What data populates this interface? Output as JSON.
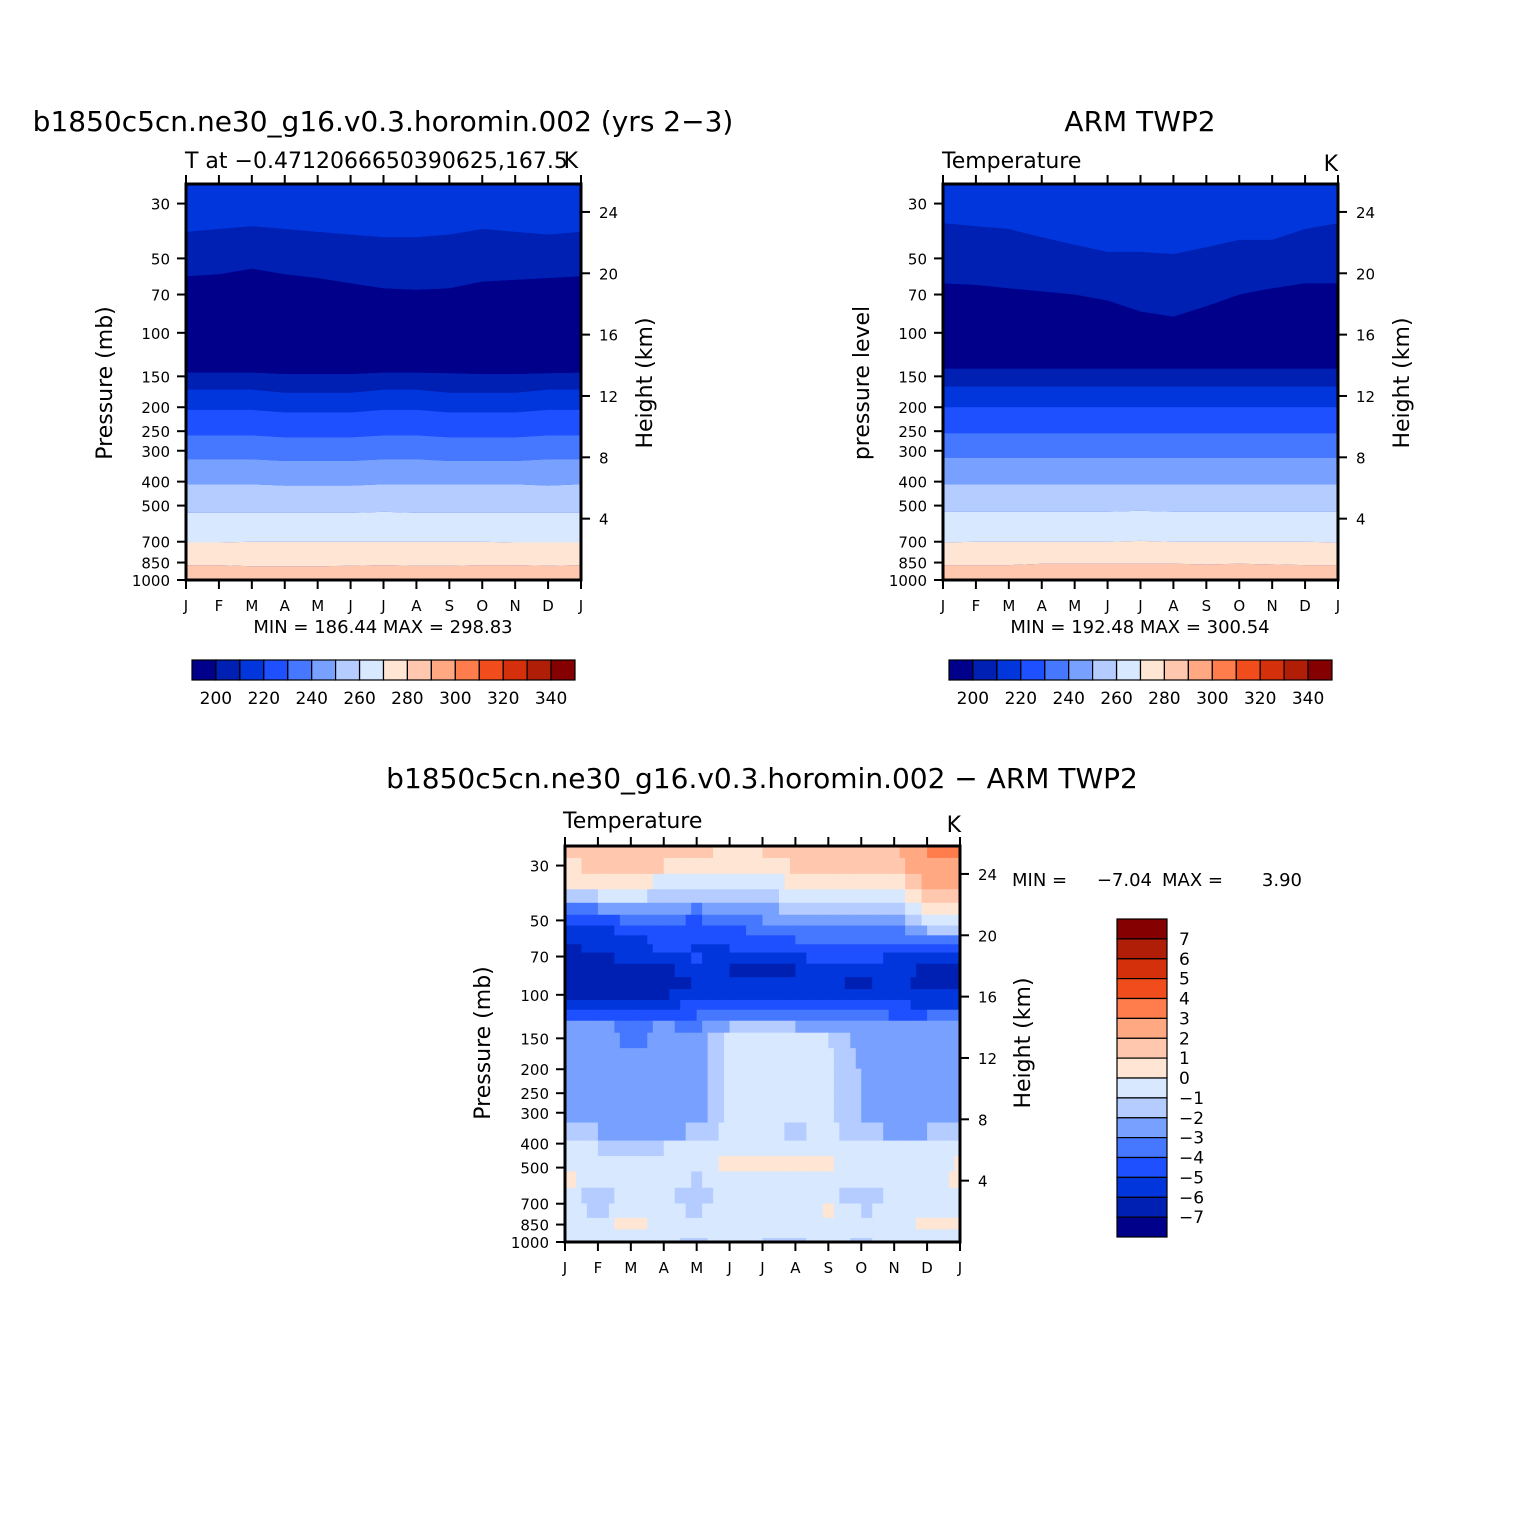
{
  "palette": {
    "abs": [
      "#00008b",
      "#0020b3",
      "#0036dc",
      "#1e50ff",
      "#4678ff",
      "#78a0ff",
      "#b4ccff",
      "#d7e8ff",
      "#ffe6d4",
      "#ffc8ae",
      "#ffa882",
      "#ff7c4c",
      "#f04c1c",
      "#d4300c",
      "#b01e08",
      "#850000"
    ],
    "diff": [
      "#00008b",
      "#0020b3",
      "#0036dc",
      "#1e50ff",
      "#4678ff",
      "#78a0ff",
      "#b4ccff",
      "#d7e8ff",
      "#ffe6d4",
      "#ffc8ae",
      "#ffa882",
      "#ff7c4c",
      "#f04c1c",
      "#d4300c",
      "#b01e08",
      "#850000"
    ]
  },
  "panels": {
    "model": {
      "title": "b1850c5cn.ne30_g16.v0.3.horomin.002 (yrs 2−3)",
      "subtitle_left": "T at −0.4712066650390625,167.5",
      "subtitle_right": "K",
      "ylabel_left": "Pressure (mb)",
      "ylabel_right": "Height (km)",
      "minmax": "MIN = 186.44 MAX = 298.83",
      "colorbar_labels": [
        "200",
        "220",
        "240",
        "260",
        "280",
        "300",
        "320",
        "340"
      ]
    },
    "obs": {
      "title": "ARM TWP2",
      "subtitle_left": "Temperature",
      "subtitle_right": "K",
      "ylabel_left": "pressure level",
      "ylabel_right": "Height (km)",
      "minmax": "MIN = 192.48 MAX = 300.54",
      "colorbar_labels": [
        "200",
        "220",
        "240",
        "260",
        "280",
        "300",
        "320",
        "340"
      ]
    },
    "diff": {
      "title": "b1850c5cn.ne30_g16.v0.3.horomin.002 − ARM TWP2",
      "subtitle_left": "Temperature",
      "subtitle_right": "K",
      "ylabel_left": "Pressure (mb)",
      "ylabel_right": "Height (km)",
      "min_label": "MIN =",
      "min_value": "−7.04",
      "max_label": "MAX =",
      "max_value": "3.90",
      "colorbar_labels": [
        "7",
        "6",
        "5",
        "4",
        "3",
        "2",
        "1",
        "0",
        "−1",
        "−2",
        "−3",
        "−4",
        "−5",
        "−6",
        "−7"
      ]
    }
  },
  "axes": {
    "month_labels": [
      "J",
      "F",
      "M",
      "A",
      "M",
      "J",
      "J",
      "A",
      "S",
      "O",
      "N",
      "D",
      "J"
    ],
    "pressure_ticks": [
      "30",
      "50",
      "70",
      "100",
      "150",
      "200",
      "250",
      "300",
      "400",
      "500",
      "700",
      "850",
      "1000"
    ],
    "height_ticks": [
      "24",
      "20",
      "16",
      "12",
      "8",
      "4"
    ]
  },
  "chart_data": [
    {
      "type": "heatmap",
      "title": "b1850c5cn.ne30_g16.v0.3.horomin.002 (yrs 2−3)",
      "subtitle": "T at −0.4712066650390625,167.5",
      "units": "K",
      "x": [
        "J",
        "F",
        "M",
        "A",
        "M",
        "J",
        "J",
        "A",
        "S",
        "O",
        "N",
        "D",
        "J"
      ],
      "xlabel": "",
      "ylabel": "Pressure (mb)",
      "ylabel_right": "Height (km)",
      "y_scale": "log",
      "ylim": [
        1000,
        25
      ],
      "min": 186.44,
      "max": 298.83,
      "contour_interval": 10,
      "colorbar_range": [
        190,
        350
      ],
      "isotherm_pressures_mb": {
        "290": [
          870,
          870,
          880,
          880,
          880,
          875,
          870,
          875,
          875,
          870,
          870,
          875,
          870
        ],
        "280": [
          705,
          705,
          700,
          700,
          700,
          700,
          700,
          700,
          700,
          700,
          705,
          705,
          705
        ],
        "270": [
          535,
          535,
          535,
          535,
          535,
          535,
          530,
          535,
          535,
          535,
          535,
          535,
          535
        ],
        "260": [
          410,
          410,
          410,
          415,
          415,
          415,
          410,
          410,
          410,
          410,
          410,
          415,
          410
        ],
        "250": [
          325,
          325,
          325,
          330,
          330,
          330,
          325,
          325,
          330,
          330,
          330,
          325,
          325
        ],
        "240": [
          260,
          260,
          260,
          265,
          265,
          265,
          260,
          260,
          265,
          265,
          265,
          260,
          260
        ],
        "230": [
          205,
          205,
          205,
          210,
          210,
          210,
          205,
          205,
          210,
          210,
          210,
          205,
          205
        ],
        "220": [
          170,
          170,
          170,
          175,
          175,
          175,
          170,
          170,
          175,
          175,
          175,
          170,
          170
        ],
        "210": [
          145,
          145,
          145,
          147,
          147,
          147,
          145,
          145,
          146,
          147,
          147,
          146,
          145
        ],
        "200": [
          59,
          58,
          55,
          58,
          60,
          63,
          66,
          67,
          66,
          62,
          61,
          60,
          59
        ],
        "210b": [
          39,
          38,
          37,
          38,
          39,
          40,
          41,
          41,
          40,
          38,
          39,
          40,
          39
        ]
      }
    },
    {
      "type": "heatmap",
      "title": "ARM TWP2",
      "subtitle": "Temperature",
      "units": "K",
      "x": [
        "J",
        "F",
        "M",
        "A",
        "M",
        "J",
        "J",
        "A",
        "S",
        "O",
        "N",
        "D",
        "J"
      ],
      "xlabel": "",
      "ylabel": "pressure level",
      "ylabel_right": "Height (km)",
      "y_scale": "log",
      "ylim": [
        1000,
        25
      ],
      "min": 192.48,
      "max": 300.54,
      "contour_interval": 10,
      "colorbar_range": [
        190,
        350
      ],
      "isotherm_pressures_mb": {
        "290": [
          870,
          870,
          870,
          860,
          860,
          860,
          860,
          860,
          865,
          860,
          865,
          870,
          870
        ],
        "280": [
          705,
          700,
          700,
          700,
          700,
          700,
          695,
          700,
          700,
          700,
          700,
          700,
          705
        ],
        "270": [
          530,
          530,
          530,
          530,
          530,
          530,
          525,
          530,
          530,
          530,
          530,
          530,
          530
        ],
        "260": [
          410,
          410,
          410,
          410,
          410,
          410,
          410,
          410,
          410,
          410,
          410,
          410,
          410
        ],
        "250": [
          320,
          320,
          320,
          320,
          320,
          320,
          320,
          320,
          320,
          320,
          320,
          320,
          320
        ],
        "240": [
          255,
          255,
          255,
          255,
          255,
          255,
          255,
          255,
          255,
          255,
          255,
          255,
          255
        ],
        "230": [
          200,
          200,
          200,
          200,
          200,
          200,
          200,
          200,
          200,
          200,
          200,
          200,
          200
        ],
        "220": [
          165,
          165,
          165,
          165,
          165,
          165,
          165,
          165,
          165,
          165,
          165,
          165,
          165
        ],
        "210": [
          140,
          140,
          140,
          140,
          140,
          140,
          140,
          140,
          140,
          140,
          140,
          140,
          140
        ],
        "200": [
          63,
          64,
          66,
          68,
          70,
          74,
          82,
          86,
          78,
          70,
          66,
          63,
          63
        ],
        "210b": [
          36,
          37,
          38,
          41,
          44,
          47,
          47,
          48,
          45,
          42,
          42,
          38,
          36
        ]
      }
    },
    {
      "type": "heatmap",
      "title": "b1850c5cn.ne30_g16.v0.3.horomin.002 − ARM TWP2",
      "subtitle": "Temperature",
      "units": "K",
      "x": [
        "J",
        "F",
        "M",
        "A",
        "M",
        "J",
        "J",
        "A",
        "S",
        "O",
        "N",
        "D",
        "J"
      ],
      "xlabel": "",
      "ylabel": "Pressure (mb)",
      "ylabel_right": "Height (km)",
      "y_scale": "log",
      "ylim": [
        1000,
        25
      ],
      "min": -7.04,
      "max": 3.9,
      "contour_interval": 1,
      "colorbar_range": [
        -8,
        8
      ],
      "rows_pressure_mb": [
        26,
        30,
        35,
        40,
        45,
        50,
        55,
        60,
        65,
        70,
        80,
        90,
        100,
        110,
        120,
        135,
        150,
        180,
        220,
        260,
        300,
        360,
        420,
        480,
        560,
        650,
        750,
        850,
        930,
        1000
      ],
      "values_by_month": [
        [
          1.0,
          0.6,
          0.0,
          -2.0,
          -4.0,
          -5.0,
          -5.2,
          -5.5,
          -6.2,
          -6.5,
          -6.7,
          -6.5,
          -6.2,
          -5.0,
          -4.0,
          -2.5,
          -2.2,
          -2.2,
          -2.2,
          -2.2,
          -2.3,
          -1.8,
          -0.8,
          -0.4,
          0.2,
          -0.4,
          -0.6,
          -0.4,
          -0.6,
          -0.7
        ],
        [
          1.6,
          1.3,
          0.4,
          -1.0,
          -3.0,
          -5.0,
          -5.5,
          -5.6,
          -5.8,
          -6.4,
          -6.4,
          -6.3,
          -6.2,
          -5.2,
          -4.2,
          -2.6,
          -2.3,
          -2.3,
          -2.4,
          -2.5,
          -2.6,
          -2.0,
          -1.0,
          -0.5,
          -0.3,
          -1.5,
          -1.2,
          -0.6,
          -0.8,
          -0.8
        ],
        [
          1.8,
          1.5,
          0.8,
          -0.5,
          -2.0,
          -3.4,
          -4.6,
          -5.5,
          -5.6,
          -5.7,
          -6.4,
          -6.7,
          -6.1,
          -5.5,
          -4.5,
          -3.4,
          -3.3,
          -2.5,
          -2.4,
          -2.5,
          -2.6,
          -2.6,
          -1.6,
          -0.7,
          -0.5,
          -0.5,
          -0.7,
          0.6,
          -0.6,
          -0.7
        ],
        [
          1.5,
          1.0,
          -0.3,
          -1.4,
          -2.6,
          -3.8,
          -4.3,
          -4.6,
          -4.7,
          -5.4,
          -6.2,
          -6.4,
          -6.2,
          -5.2,
          -4.2,
          -2.8,
          -2.7,
          -2.5,
          -2.6,
          -2.6,
          -2.5,
          -2.2,
          -1.0,
          -0.8,
          -0.6,
          -0.7,
          -0.8,
          -0.8,
          -0.8,
          -0.8
        ],
        [
          1.1,
          0.4,
          -0.6,
          -1.9,
          -3.1,
          -4.1,
          -4.6,
          -5.0,
          -5.1,
          -4.9,
          -5.6,
          -5.9,
          -5.4,
          -4.8,
          -4.0,
          -3.3,
          -2.6,
          -2.5,
          -2.5,
          -2.5,
          -2.8,
          -1.9,
          -0.8,
          -0.5,
          -1.1,
          -1.5,
          -1.1,
          -1.0,
          -1.0,
          -1.2
        ],
        [
          0.9,
          0.5,
          -0.5,
          -1.5,
          -2.5,
          -3.4,
          -4.2,
          -4.4,
          -5.0,
          -5.7,
          -6.0,
          -5.8,
          -5.5,
          -4.6,
          -3.6,
          -2.0,
          -0.6,
          -0.6,
          -0.6,
          -0.7,
          -0.8,
          -0.6,
          -0.5,
          0.2,
          -0.5,
          -0.5,
          -0.6,
          -0.6,
          -0.7,
          -0.7
        ],
        [
          1.0,
          0.6,
          -0.3,
          -1.2,
          -2.2,
          -3.0,
          -3.8,
          -4.2,
          -4.4,
          -5.3,
          -6.2,
          -5.8,
          -5.4,
          -4.5,
          -3.5,
          -2.0,
          -0.4,
          -0.4,
          -0.4,
          -0.5,
          -0.5,
          -0.5,
          -0.5,
          0.4,
          -0.5,
          -0.7,
          -0.6,
          -0.7,
          -0.8,
          -1.0
        ],
        [
          1.3,
          1.1,
          0.1,
          -0.8,
          -1.8,
          -2.7,
          -3.4,
          -4.0,
          -4.3,
          -5.3,
          -6.0,
          -6.0,
          -5.4,
          -4.4,
          -3.4,
          -2.0,
          -0.6,
          -0.6,
          -0.6,
          -0.6,
          -0.6,
          -1.2,
          -0.8,
          0.4,
          -0.6,
          -0.6,
          -0.7,
          -0.8,
          -0.9,
          -1.1
        ],
        [
          1.4,
          1.3,
          0.5,
          -0.6,
          -1.5,
          -2.5,
          -3.2,
          -3.8,
          -4.2,
          -4.5,
          -5.3,
          -5.8,
          -5.5,
          -4.4,
          -3.5,
          -2.2,
          -0.9,
          -0.8,
          -0.9,
          -0.8,
          -0.8,
          -0.7,
          -0.5,
          0.1,
          -0.8,
          -0.8,
          0.2,
          -0.8,
          -0.8,
          -0.8
        ],
        [
          1.8,
          1.4,
          0.5,
          -0.6,
          -1.6,
          -2.5,
          -3.0,
          -3.5,
          -4.2,
          -4.7,
          -5.4,
          -6.2,
          -5.7,
          -4.4,
          -3.4,
          -2.5,
          -2.5,
          -2.2,
          -2.0,
          -2.0,
          -2.0,
          -1.5,
          -1.0,
          -0.5,
          -0.8,
          -1.5,
          -1.1,
          -0.6,
          -0.8,
          -1.1
        ],
        [
          1.8,
          1.5,
          0.4,
          -0.7,
          -1.8,
          -2.8,
          -3.4,
          -4.0,
          -4.5,
          -5.2,
          -5.7,
          -5.6,
          -5.4,
          -4.8,
          -4.2,
          -3.0,
          -2.6,
          -2.5,
          -2.5,
          -2.5,
          -2.4,
          -2.2,
          -1.0,
          -0.6,
          -0.6,
          -0.8,
          -0.8,
          -0.5,
          -0.8,
          -0.8
        ],
        [
          3.0,
          2.8,
          2.4,
          1.5,
          0.6,
          -0.5,
          -2.0,
          -3.3,
          -4.3,
          -5.2,
          -6.2,
          -6.5,
          -6.0,
          -5.2,
          -4.0,
          -3.0,
          -2.7,
          -2.6,
          -2.5,
          -2.5,
          -2.5,
          -2.0,
          -1.0,
          -0.7,
          -0.5,
          -0.7,
          -0.3,
          0.2,
          -0.6,
          -0.7
        ],
        [
          3.3,
          3.0,
          2.2,
          1.0,
          0.0,
          -1.0,
          -2.0,
          -3.0,
          -4.0,
          -5.3,
          -6.5,
          -6.7,
          -6.0,
          -5.0,
          -3.8,
          -2.8,
          -2.5,
          -2.5,
          -2.5,
          -2.5,
          -2.5,
          -2.0,
          -0.8,
          0.1,
          0.2,
          -0.6,
          -0.6,
          0.3,
          -0.7,
          -0.7
        ]
      ]
    }
  ]
}
